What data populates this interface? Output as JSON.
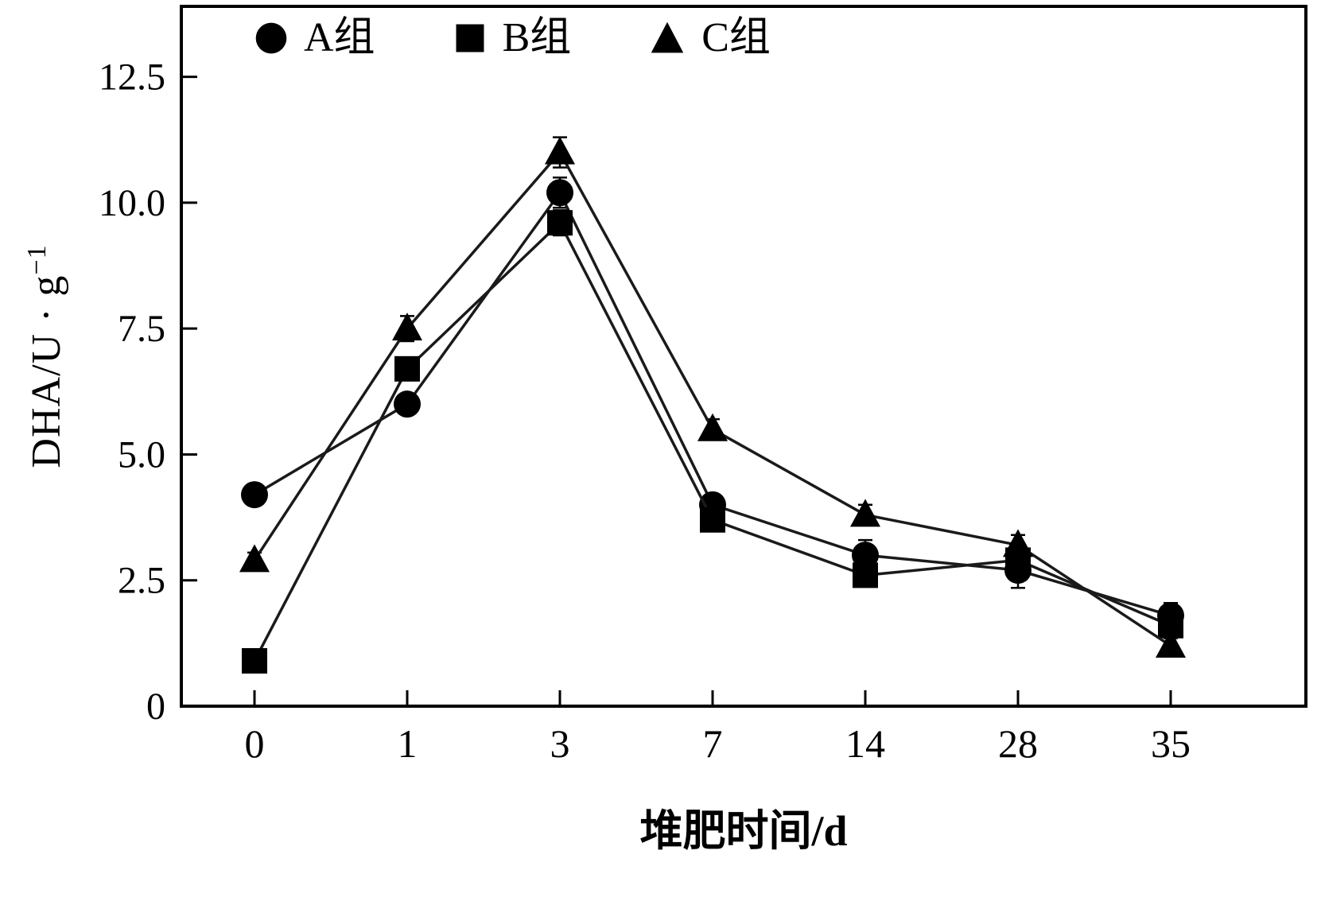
{
  "axes": {
    "ylabel_main": "DHA/U · g",
    "ylabel_sup": "−1",
    "xlabel": "堆肥时间/d"
  },
  "legend": {
    "items": [
      {
        "label": "A组",
        "marker": "circle"
      },
      {
        "label": "B组",
        "marker": "square"
      },
      {
        "label": "C组",
        "marker": "triangle"
      }
    ]
  },
  "chart_data": {
    "type": "line",
    "title": "",
    "xlabel": "堆肥时间/d",
    "ylabel": "DHA/U·g⁻¹",
    "categories": [
      "0",
      "1",
      "3",
      "7",
      "14",
      "28",
      "35"
    ],
    "ylim": [
      0,
      13.9
    ],
    "yticks": [
      0,
      2.5,
      5.0,
      7.5,
      10.0,
      12.5
    ],
    "grid": false,
    "legend_position": "top-inside",
    "marker_color": "#000000",
    "line_color": "#1a1a1a",
    "series": [
      {
        "name": "A组",
        "marker": "circle",
        "values": [
          4.2,
          6.0,
          10.2,
          4.0,
          3.0,
          2.7,
          1.8
        ],
        "errors": [
          0.1,
          0.15,
          0.3,
          0.15,
          0.3,
          0.35,
          0.25
        ]
      },
      {
        "name": "B组",
        "marker": "square",
        "values": [
          0.9,
          6.7,
          9.6,
          3.7,
          2.6,
          2.9,
          1.6
        ],
        "errors": [
          0.1,
          0.2,
          0.25,
          0.15,
          0.15,
          0.2,
          0.15
        ]
      },
      {
        "name": "C组",
        "marker": "triangle",
        "values": [
          2.9,
          7.5,
          11.0,
          5.5,
          3.8,
          3.2,
          1.2
        ],
        "errors": [
          0.15,
          0.25,
          0.3,
          0.2,
          0.2,
          0.2,
          0.15
        ]
      }
    ]
  }
}
